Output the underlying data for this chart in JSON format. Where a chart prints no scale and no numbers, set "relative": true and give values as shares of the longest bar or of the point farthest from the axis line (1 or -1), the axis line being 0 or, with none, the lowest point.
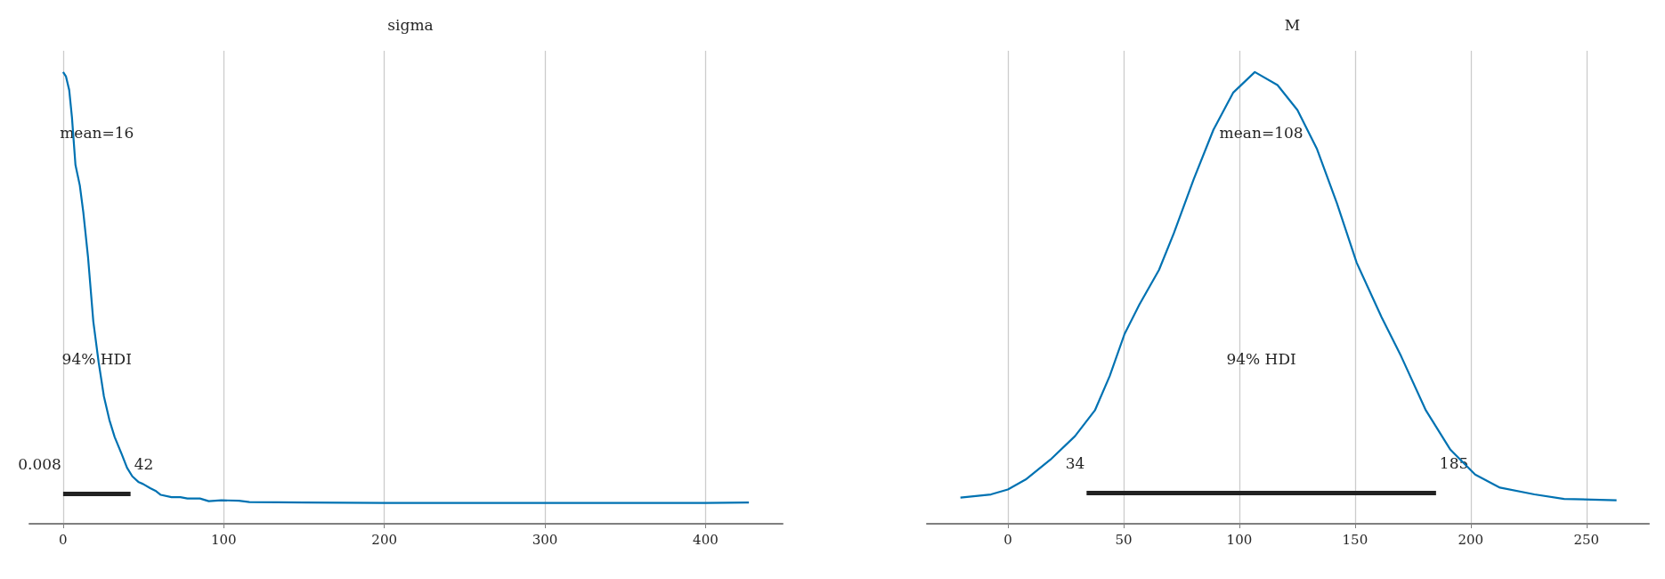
{
  "chart_data": [
    {
      "type": "line",
      "title": "sigma",
      "relative": true,
      "grid": "x",
      "xlim": [
        -21,
        448
      ],
      "xticks": [
        0,
        100,
        200,
        300,
        400
      ],
      "series": [
        {
          "color": "#0072b2",
          "x": [
            0,
            1.8,
            3.8,
            5.5,
            7.7,
            10.4,
            12.6,
            15.5,
            18.8,
            22.1,
            25.4,
            28.8,
            32.1,
            36.5,
            39.8,
            43.1,
            47.1,
            49.8,
            54.2,
            57.5,
            60.8,
            67.5,
            73,
            77.4,
            85.2,
            90.7,
            98.5,
            109.5,
            116,
            150,
            200,
            250,
            300,
            350,
            400,
            427
          ],
          "values": [
            1,
            0.99,
            0.96,
            0.9,
            0.794,
            0.749,
            0.689,
            0.591,
            0.448,
            0.358,
            0.282,
            0.23,
            0.192,
            0.154,
            0.124,
            0.105,
            0.092,
            0.088,
            0.079,
            0.073,
            0.064,
            0.059,
            0.059,
            0.056,
            0.056,
            0.05,
            0.052,
            0.051,
            0.048,
            0.047,
            0.046,
            0.046,
            0.046,
            0.046,
            0.046,
            0.047
          ]
        },
        {
          "color": "#222222",
          "x": [
            0.008,
            42
          ],
          "values": [
            0.066,
            0.066
          ]
        }
      ],
      "annotations": [
        "mean=16",
        "94% HDI",
        "0.008",
        "42"
      ]
    },
    {
      "type": "line",
      "title": "M",
      "relative": true,
      "grid": "x",
      "xlim": [
        -35,
        277
      ],
      "xticks": [
        0,
        50,
        100,
        150,
        200,
        250
      ],
      "series": [
        {
          "color": "#0072b2",
          "x": [
            -20.5,
            -7.3,
            0,
            7.7,
            18.4,
            29,
            37.6,
            44,
            50.4,
            56.8,
            65.3,
            71.7,
            80.3,
            88.8,
            97.3,
            106.7,
            116.5,
            125.1,
            133.6,
            142.2,
            150.7,
            161.4,
            169.9,
            180.6,
            191.2,
            201.9,
            212.6,
            227.5,
            240.3,
            263
          ],
          "values": [
            0.058,
            0.065,
            0.076,
            0.098,
            0.142,
            0.194,
            0.251,
            0.327,
            0.42,
            0.485,
            0.562,
            0.643,
            0.763,
            0.872,
            0.954,
            1,
            0.971,
            0.916,
            0.829,
            0.709,
            0.578,
            0.458,
            0.371,
            0.251,
            0.164,
            0.109,
            0.08,
            0.065,
            0.055,
            0.052
          ]
        },
        {
          "color": "#222222",
          "x": [
            34,
            185
          ],
          "values": [
            0.068,
            0.068
          ]
        }
      ],
      "annotations": [
        "mean=108",
        "94% HDI",
        "34",
        "185"
      ]
    }
  ]
}
